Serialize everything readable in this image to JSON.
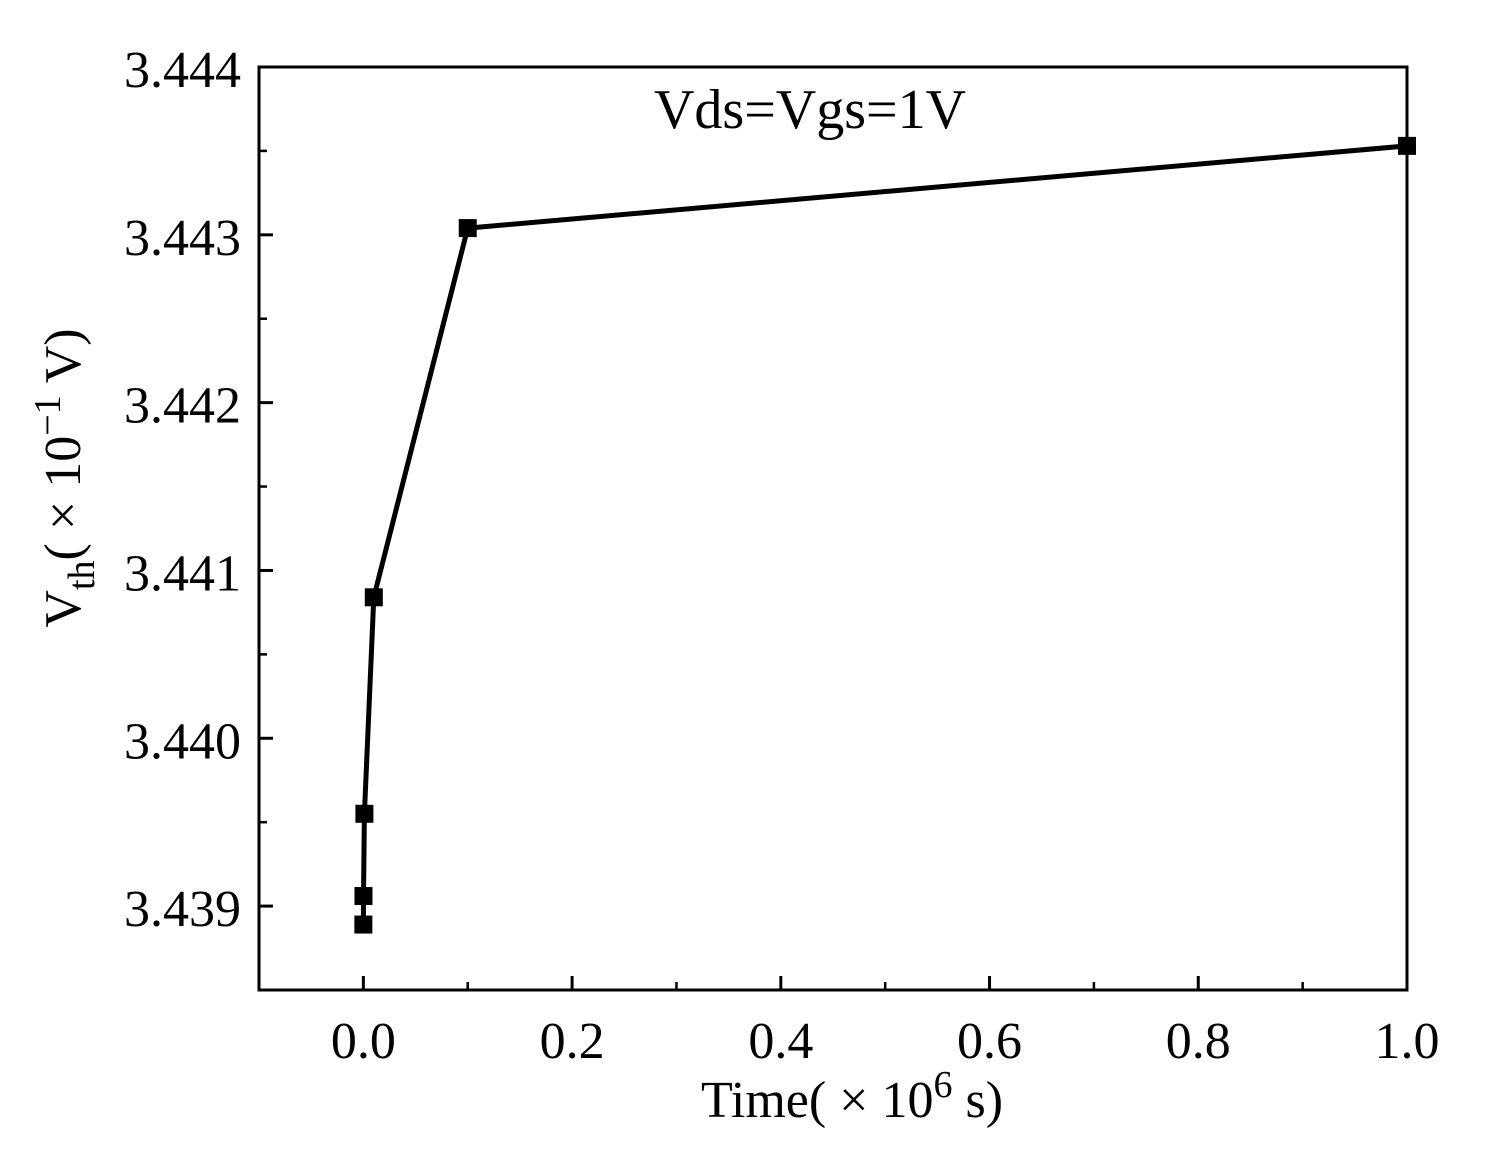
{
  "chart_data": {
    "type": "line",
    "title": "",
    "annotation": "Vds=Vgs=1V",
    "xlabel": {
      "main": "Time(",
      "times": " × 10",
      "exp": "6",
      "unit": " s)"
    },
    "ylabel": {
      "main": "V",
      "sub": "th",
      "paren": "( × 10",
      "exp": "−1",
      "unit": " V)"
    },
    "xlim": [
      -0.1,
      1.0
    ],
    "ylim": [
      3.4385,
      3.444
    ],
    "x_ticks": [
      0.0,
      0.2,
      0.4,
      0.6,
      0.8,
      1.0
    ],
    "x_tick_labels": [
      "0.0",
      "0.2",
      "0.4",
      "0.6",
      "0.8",
      "1.0"
    ],
    "x_minor_ticks": [
      -0.1,
      0.1,
      0.3,
      0.5,
      0.7,
      0.9
    ],
    "y_ticks": [
      3.439,
      3.44,
      3.441,
      3.442,
      3.443,
      3.444
    ],
    "y_tick_labels": [
      "3.439",
      "3.440",
      "3.441",
      "3.442",
      "3.443",
      "3.444"
    ],
    "y_minor_ticks": [
      3.4395,
      3.4405,
      3.4415,
      3.4425,
      3.4435
    ],
    "grid": false,
    "series": [
      {
        "name": "Vth",
        "color": "#000000",
        "marker": "square",
        "x": [
          0.0,
          0.0001,
          0.001,
          0.01,
          0.1,
          1.0
        ],
        "y": [
          3.43889,
          3.43906,
          3.43955,
          3.44084,
          3.44304,
          3.44353
        ]
      }
    ]
  }
}
